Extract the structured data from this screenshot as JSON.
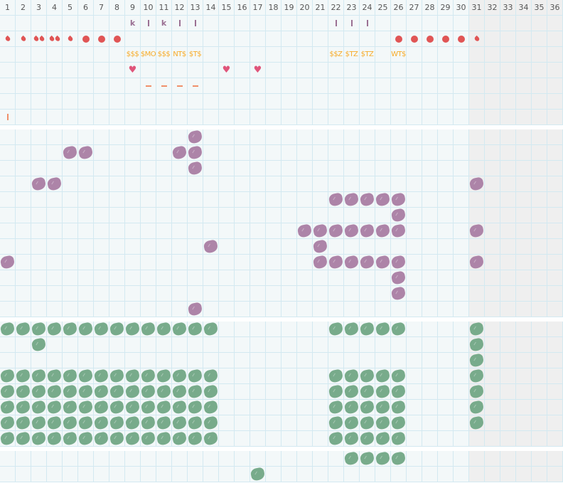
{
  "columns": [
    "1",
    "2",
    "3",
    "4",
    "5",
    "6",
    "7",
    "8",
    "9",
    "10",
    "11",
    "12",
    "13",
    "14",
    "15",
    "16",
    "17",
    "18",
    "19",
    "20",
    "21",
    "22",
    "23",
    "24",
    "25",
    "26",
    "27",
    "28",
    "29",
    "30",
    "31",
    "32",
    "33",
    "34",
    "35",
    "36"
  ],
  "inactive_from_column": 31,
  "colors": {
    "purple": "#ad84a8",
    "green": "#78ab8b",
    "red": "#e05555",
    "orange": "#f7ac2a",
    "pink": "#e0557a",
    "salmon": "#f0906a",
    "letter": "#9b7093"
  },
  "section1": {
    "rows": [
      {
        "9": {
          "type": "letter",
          "text": "k"
        },
        "10": {
          "type": "bar"
        },
        "11": {
          "type": "letter",
          "text": "k"
        },
        "12": {
          "type": "bar"
        },
        "13": {
          "type": "bar"
        },
        "22": {
          "type": "bar"
        },
        "23": {
          "type": "bar"
        },
        "24": {
          "type": "bar"
        }
      },
      {
        "1": {
          "type": "drop"
        },
        "2": {
          "type": "drop"
        },
        "3": {
          "type": "drop2"
        },
        "4": {
          "type": "drop2"
        },
        "5": {
          "type": "drop"
        },
        "6": {
          "type": "dot"
        },
        "7": {
          "type": "dot"
        },
        "8": {
          "type": "dot"
        },
        "26": {
          "type": "dot"
        },
        "27": {
          "type": "dot"
        },
        "28": {
          "type": "dot"
        },
        "29": {
          "type": "dot"
        },
        "30": {
          "type": "dot"
        },
        "31": {
          "type": "drop"
        }
      },
      {
        "9": {
          "type": "text",
          "text": "$$$"
        },
        "10": {
          "type": "text",
          "text": "$MO"
        },
        "11": {
          "type": "text",
          "text": "$$$"
        },
        "12": {
          "type": "text",
          "text": "NT$"
        },
        "13": {
          "type": "text",
          "text": "$T$"
        },
        "22": {
          "type": "text",
          "text": "$$Z"
        },
        "23": {
          "type": "text",
          "text": "$TZ"
        },
        "24": {
          "type": "text",
          "text": "$TZ"
        },
        "26": {
          "type": "text",
          "text": "WT$"
        }
      },
      {
        "9": {
          "type": "heart"
        },
        "15": {
          "type": "heart"
        },
        "17": {
          "type": "heart"
        }
      },
      {
        "10": {
          "type": "dash"
        },
        "11": {
          "type": "dash"
        },
        "12": {
          "type": "dash"
        },
        "13": {
          "type": "dash"
        }
      },
      {},
      {
        "1": {
          "type": "obar"
        }
      }
    ]
  },
  "section2": {
    "color": "purple",
    "rows": [
      [
        13
      ],
      [
        5,
        6,
        12,
        13
      ],
      [
        13
      ],
      [
        3,
        4,
        31
      ],
      [
        22,
        23,
        24,
        25,
        26
      ],
      [
        26
      ],
      [
        20,
        21,
        22,
        23,
        24,
        25,
        26,
        31
      ],
      [
        14,
        21
      ],
      [
        1,
        21,
        22,
        23,
        24,
        25,
        26,
        31
      ],
      [
        26
      ],
      [
        26
      ],
      [
        13
      ]
    ]
  },
  "section3": {
    "color": "green",
    "rows": [
      [
        1,
        2,
        3,
        4,
        5,
        6,
        7,
        8,
        9,
        10,
        11,
        12,
        13,
        14,
        22,
        23,
        24,
        25,
        26,
        31
      ],
      [
        3,
        31
      ],
      [
        31
      ],
      [
        1,
        2,
        3,
        4,
        5,
        6,
        7,
        8,
        9,
        10,
        11,
        12,
        13,
        14,
        22,
        23,
        24,
        25,
        26,
        31
      ],
      [
        1,
        2,
        3,
        4,
        5,
        6,
        7,
        8,
        9,
        10,
        11,
        12,
        13,
        14,
        22,
        23,
        24,
        25,
        26,
        31
      ],
      [
        1,
        2,
        3,
        4,
        5,
        6,
        7,
        8,
        9,
        10,
        11,
        12,
        13,
        14,
        22,
        23,
        24,
        25,
        26,
        31
      ],
      [
        1,
        2,
        3,
        4,
        5,
        6,
        7,
        8,
        9,
        10,
        11,
        12,
        13,
        14,
        22,
        23,
        24,
        25,
        26,
        31
      ],
      [
        1,
        2,
        3,
        4,
        5,
        6,
        7,
        8,
        9,
        10,
        11,
        12,
        13,
        14,
        22,
        23,
        24,
        25,
        26
      ]
    ]
  },
  "section4": {
    "color": "green",
    "rows": [
      [
        23,
        24,
        25,
        26
      ],
      [
        17
      ]
    ]
  }
}
